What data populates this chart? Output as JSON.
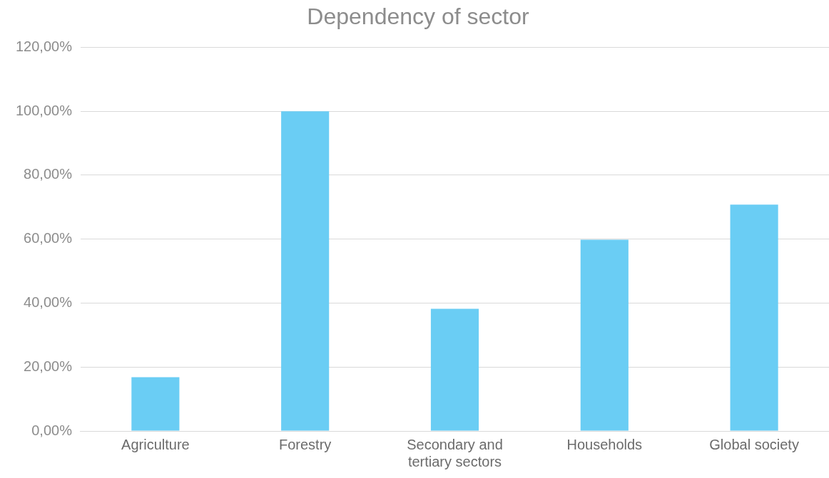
{
  "chart_data": {
    "type": "bar",
    "title": "Dependency of sector",
    "categories": [
      "Agriculture",
      "Forestry",
      "Secondary and tertiary sectors",
      "Households",
      "Global society"
    ],
    "values": [
      16.8,
      100,
      38.2,
      59.8,
      70.8
    ],
    "color": "#6acdf4",
    "ylim": [
      0,
      120
    ],
    "yticks": [
      {
        "value": 0,
        "label": "0,00%"
      },
      {
        "value": 20,
        "label": "20,00%"
      },
      {
        "value": 40,
        "label": "40,00%"
      },
      {
        "value": 60,
        "label": "60,00%"
      },
      {
        "value": 80,
        "label": "80,00%"
      },
      {
        "value": 100,
        "label": "100,00%"
      },
      {
        "value": 120,
        "label": "120,00%"
      }
    ],
    "grid": "y"
  }
}
